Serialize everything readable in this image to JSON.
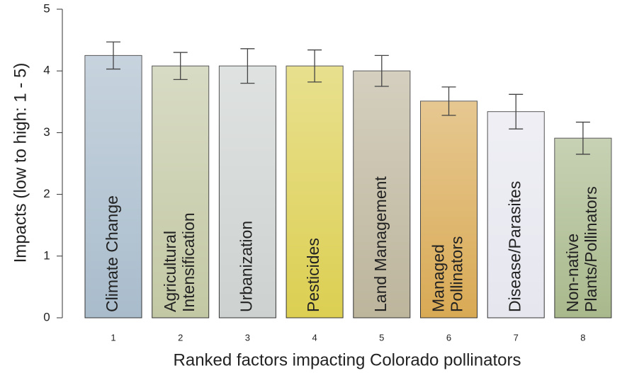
{
  "chart_data": {
    "type": "bar",
    "y_label": "Impacts (low to high: 1 - 5)",
    "x_label": "Ranked factors impacting Colorado pollinators",
    "categories": [
      "1",
      "2",
      "3",
      "4",
      "5",
      "6",
      "7",
      "8"
    ],
    "bar_labels": [
      [
        "Climate Change"
      ],
      [
        "Agricultural",
        "Intensification"
      ],
      [
        "Urbanization"
      ],
      [
        "Pesticides"
      ],
      [
        "Land Management"
      ],
      [
        "Managed",
        "Pollinators"
      ],
      [
        "Disease/Parasites"
      ],
      [
        "Non-native",
        "Plants/Pollinators"
      ]
    ],
    "values": [
      4.25,
      4.08,
      4.08,
      4.08,
      4.0,
      3.51,
      3.34,
      2.91
    ],
    "errors": [
      0.22,
      0.22,
      0.28,
      0.26,
      0.25,
      0.23,
      0.28,
      0.26
    ],
    "colors": [
      "#a9bccc",
      "#c3c8a4",
      "#cdd2d0",
      "#dccf52",
      "#bdb59c",
      "#d9aa55",
      "#e6e6ef",
      "#a9b98c"
    ],
    "ylim": [
      0,
      5
    ],
    "yticks": [
      0,
      1,
      2,
      3,
      4,
      5
    ]
  }
}
